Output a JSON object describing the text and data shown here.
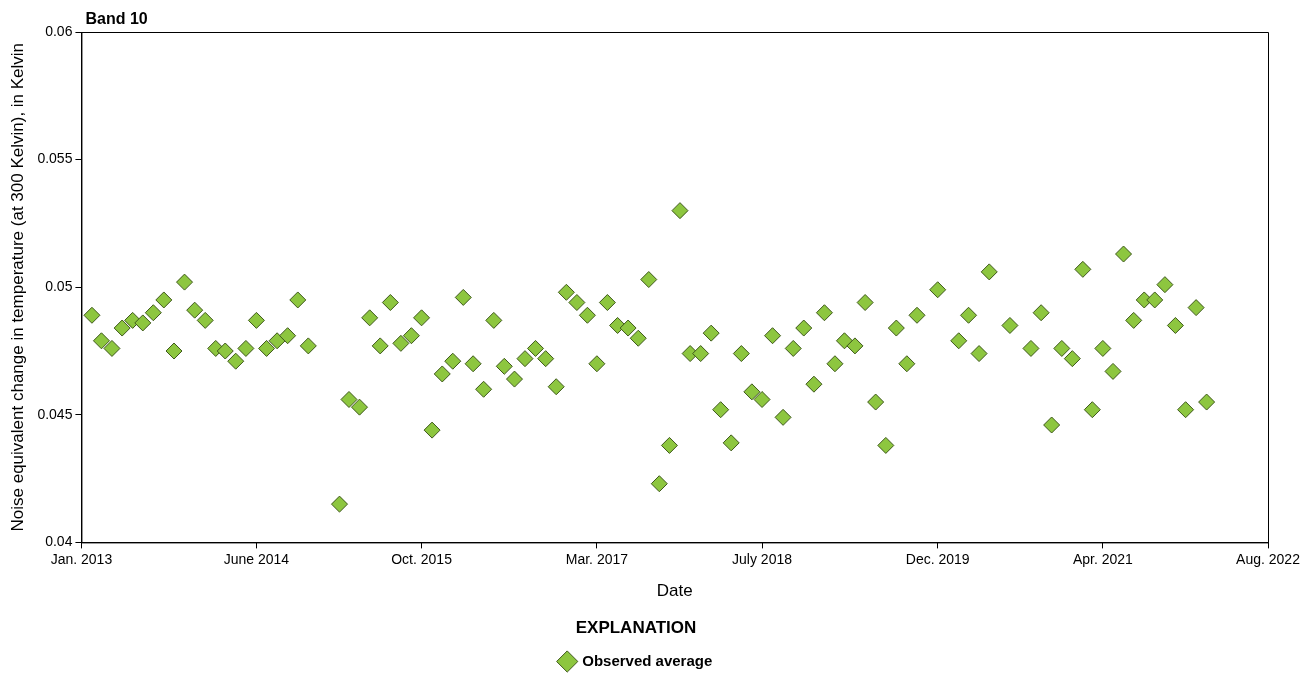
{
  "chart_data": {
    "type": "scatter",
    "title": "Band 10",
    "xlabel": "Date",
    "ylabel": "Noise equivalent change in temperature (at 300 Kelvin), in Kelvin",
    "legend_title": "EXPLANATION",
    "legend": "bottom",
    "grid": false,
    "marker": "diamond",
    "xlim": [
      "2013-01",
      "2022-08"
    ],
    "xticks": [
      {
        "value": "2013-01",
        "label": "Jan. 2013"
      },
      {
        "value": "2014-06",
        "label": "June 2014"
      },
      {
        "value": "2015-10",
        "label": "Oct. 2015"
      },
      {
        "value": "2017-03",
        "label": "Mar. 2017"
      },
      {
        "value": "2018-07",
        "label": "July 2018"
      },
      {
        "value": "2019-12",
        "label": "Dec. 2019"
      },
      {
        "value": "2021-04",
        "label": "Apr. 2021"
      },
      {
        "value": "2022-08",
        "label": "Aug. 2022"
      }
    ],
    "ylim": [
      0.04,
      0.06
    ],
    "yticks": [
      0.04,
      0.045,
      0.05,
      0.055,
      0.06
    ],
    "series": [
      {
        "name": "Observed average",
        "color": "#8dc63f",
        "x": [
          "2013-02",
          "2013-03",
          "2013-04",
          "2013-05",
          "2013-06",
          "2013-07",
          "2013-08",
          "2013-09",
          "2013-10",
          "2013-11",
          "2013-12",
          "2014-01",
          "2014-02",
          "2014-03",
          "2014-04",
          "2014-05",
          "2014-06",
          "2014-07",
          "2014-08",
          "2014-09",
          "2014-10",
          "2014-11",
          "2015-02",
          "2015-03",
          "2015-04",
          "2015-05",
          "2015-06",
          "2015-07",
          "2015-08",
          "2015-09",
          "2015-10",
          "2015-11",
          "2015-12",
          "2016-01",
          "2016-02",
          "2016-03",
          "2016-04",
          "2016-05",
          "2016-06",
          "2016-07",
          "2016-08",
          "2016-09",
          "2016-10",
          "2016-11",
          "2016-12",
          "2017-01",
          "2017-02",
          "2017-03",
          "2017-04",
          "2017-05",
          "2017-06",
          "2017-07",
          "2017-08",
          "2017-09",
          "2017-10",
          "2017-11",
          "2017-12",
          "2018-01",
          "2018-02",
          "2018-03",
          "2018-04",
          "2018-05",
          "2018-06",
          "2018-07",
          "2018-08",
          "2018-09",
          "2018-10",
          "2018-11",
          "2018-12",
          "2019-01",
          "2019-02",
          "2019-03",
          "2019-04",
          "2019-05",
          "2019-06",
          "2019-07",
          "2019-08",
          "2019-09",
          "2019-10",
          "2019-12",
          "2020-02",
          "2020-03",
          "2020-04",
          "2020-05",
          "2020-07",
          "2020-09",
          "2020-10",
          "2020-11",
          "2020-12",
          "2021-01",
          "2021-02",
          "2021-03",
          "2021-04",
          "2021-05",
          "2021-06",
          "2021-07",
          "2021-08",
          "2021-09",
          "2021-10",
          "2021-11",
          "2021-12",
          "2022-01",
          "2022-02"
        ],
        "values": [
          0.0489,
          0.0479,
          0.0476,
          0.0484,
          0.0487,
          0.0486,
          0.049,
          0.0495,
          0.0475,
          0.0502,
          0.0491,
          0.0487,
          0.0476,
          0.0475,
          0.0471,
          0.0476,
          0.0487,
          0.0476,
          0.0479,
          0.0481,
          0.0495,
          0.0477,
          0.0415,
          0.0456,
          0.0453,
          0.0488,
          0.0477,
          0.0494,
          0.0478,
          0.0481,
          0.0488,
          0.0444,
          0.0466,
          0.0471,
          0.0496,
          0.047,
          0.046,
          0.0487,
          0.0469,
          0.0464,
          0.0472,
          0.0476,
          0.0472,
          0.0461,
          0.0498,
          0.0494,
          0.0489,
          0.047,
          0.0494,
          0.0485,
          0.0484,
          0.048,
          0.0503,
          0.0423,
          0.0438,
          0.053,
          0.0474,
          0.0474,
          0.0482,
          0.0452,
          0.0439,
          0.0474,
          0.0459,
          0.0456,
          0.0481,
          0.0449,
          0.0476,
          0.0484,
          0.0462,
          0.049,
          0.047,
          0.0479,
          0.0477,
          0.0494,
          0.0455,
          0.0438,
          0.0484,
          0.047,
          0.0489,
          0.0499,
          0.0479,
          0.0489,
          0.0474,
          0.0506,
          0.0485,
          0.0476,
          0.049,
          0.0446,
          0.0476,
          0.0472,
          0.0507,
          0.0452,
          0.0476,
          0.0467,
          0.0513,
          0.0487,
          0.0495,
          0.0495,
          0.0501,
          0.0485,
          0.0452,
          0.0492,
          0.0455
        ]
      }
    ]
  }
}
